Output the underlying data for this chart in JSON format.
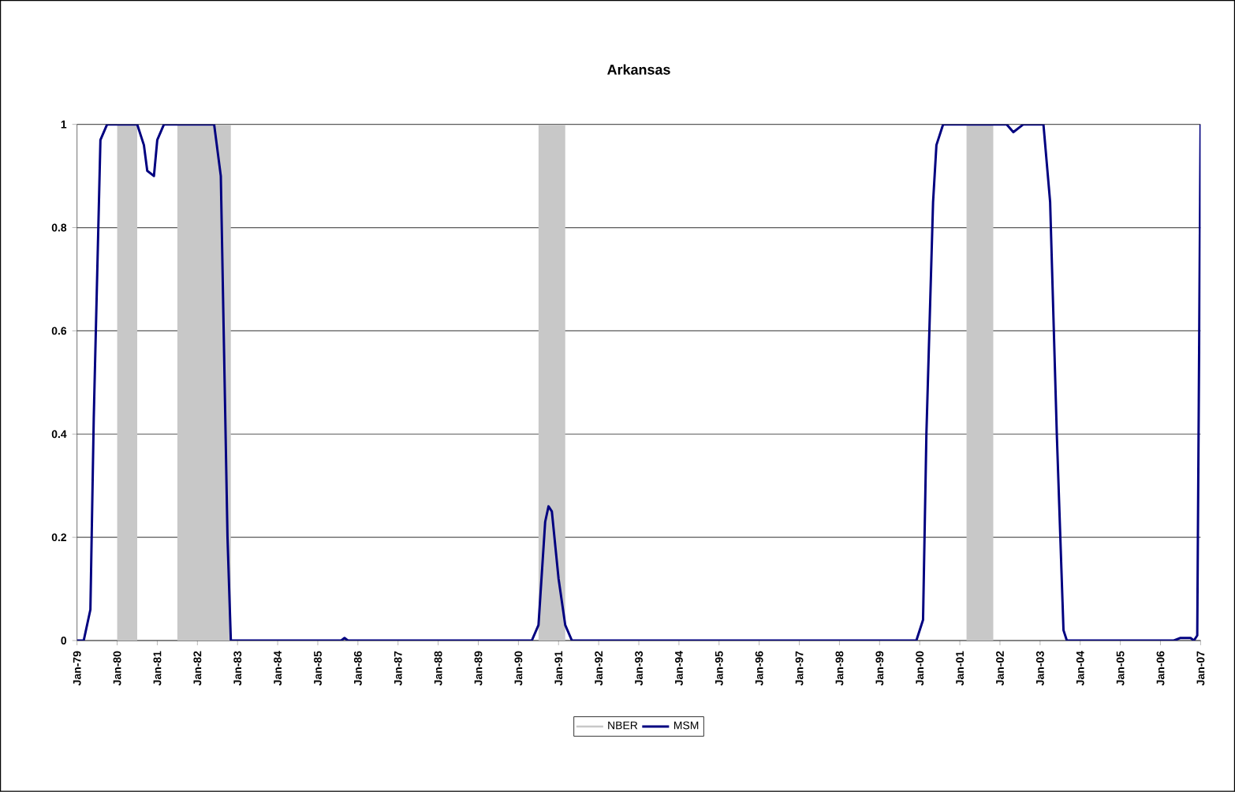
{
  "chart_data": {
    "type": "line",
    "title": "Arkansas",
    "x": [
      "1979-01",
      "1979-03",
      "1979-05",
      "1979-06",
      "1979-08",
      "1979-10",
      "1980-07",
      "1980-09",
      "1980-10",
      "1980-12",
      "1981-01",
      "1981-03",
      "1982-06",
      "1982-08",
      "1982-10",
      "1982-11",
      "1985-08",
      "1985-09",
      "1985-10",
      "1990-05",
      "1990-07",
      "1990-09",
      "1990-10",
      "1990-11",
      "1991-01",
      "1991-03",
      "1991-05",
      "1999-12",
      "2000-02",
      "2000-03",
      "2000-05",
      "2000-06",
      "2000-08",
      "2002-03",
      "2002-05",
      "2002-08",
      "2003-02",
      "2003-04",
      "2003-06",
      "2003-08",
      "2003-09",
      "2006-05",
      "2006-07",
      "2006-10",
      "2006-11",
      "2006-12",
      "2007-01"
    ],
    "series": [
      {
        "name": "MSM",
        "color": "#000080",
        "values": [
          0,
          0,
          0.06,
          0.43,
          0.97,
          1,
          1,
          0.96,
          0.91,
          0.9,
          0.97,
          1,
          1,
          0.9,
          0.2,
          0,
          0,
          0.005,
          0,
          0,
          0.03,
          0.23,
          0.26,
          0.25,
          0.12,
          0.03,
          0,
          0,
          0.04,
          0.4,
          0.85,
          0.96,
          1,
          1,
          0.985,
          1,
          1,
          0.85,
          0.4,
          0.02,
          0,
          0,
          0.005,
          0.005,
          0,
          0.01,
          1
        ]
      }
    ],
    "bands": [
      {
        "axis": "x",
        "from": "1980-01",
        "to": "1980-07",
        "label": "NBER",
        "color": "#c8c8c8"
      },
      {
        "axis": "x",
        "from": "1981-07",
        "to": "1982-11",
        "color": "#c8c8c8"
      },
      {
        "axis": "x",
        "from": "1990-07",
        "to": "1991-03",
        "color": "#c8c8c8"
      },
      {
        "axis": "x",
        "from": "2001-03",
        "to": "2001-11",
        "color": "#c8c8c8"
      }
    ],
    "xlim": [
      "1979-01",
      "2007-01"
    ],
    "xticks": [
      {
        "value": "1979-01",
        "label": "Jan-79"
      },
      {
        "value": "1980-01",
        "label": "Jan-80"
      },
      {
        "value": "1981-01",
        "label": "Jan-81"
      },
      {
        "value": "1982-01",
        "label": "Jan-82"
      },
      {
        "value": "1983-01",
        "label": "Jan-83"
      },
      {
        "value": "1984-01",
        "label": "Jan-84"
      },
      {
        "value": "1985-01",
        "label": "Jan-85"
      },
      {
        "value": "1986-01",
        "label": "Jan-86"
      },
      {
        "value": "1987-01",
        "label": "Jan-87"
      },
      {
        "value": "1988-01",
        "label": "Jan-88"
      },
      {
        "value": "1989-01",
        "label": "Jan-89"
      },
      {
        "value": "1990-01",
        "label": "Jan-90"
      },
      {
        "value": "1991-01",
        "label": "Jan-91"
      },
      {
        "value": "1992-01",
        "label": "Jan-92"
      },
      {
        "value": "1993-01",
        "label": "Jan-93"
      },
      {
        "value": "1994-01",
        "label": "Jan-94"
      },
      {
        "value": "1995-01",
        "label": "Jan-95"
      },
      {
        "value": "1996-01",
        "label": "Jan-96"
      },
      {
        "value": "1997-01",
        "label": "Jan-97"
      },
      {
        "value": "1998-01",
        "label": "Jan-98"
      },
      {
        "value": "1999-01",
        "label": "Jan-99"
      },
      {
        "value": "2000-01",
        "label": "Jan-00"
      },
      {
        "value": "2001-01",
        "label": "Jan-01"
      },
      {
        "value": "2002-01",
        "label": "Jan-02"
      },
      {
        "value": "2003-01",
        "label": "Jan-03"
      },
      {
        "value": "2004-01",
        "label": "Jan-04"
      },
      {
        "value": "2005-01",
        "label": "Jan-05"
      },
      {
        "value": "2006-01",
        "label": "Jan-06"
      },
      {
        "value": "2007-01",
        "label": "Jan-07"
      }
    ],
    "ylim": [
      0,
      1
    ],
    "yticks": [
      0,
      0.2,
      0.4,
      0.6,
      0.8,
      1
    ],
    "grid": "y",
    "legend": "bottom"
  }
}
